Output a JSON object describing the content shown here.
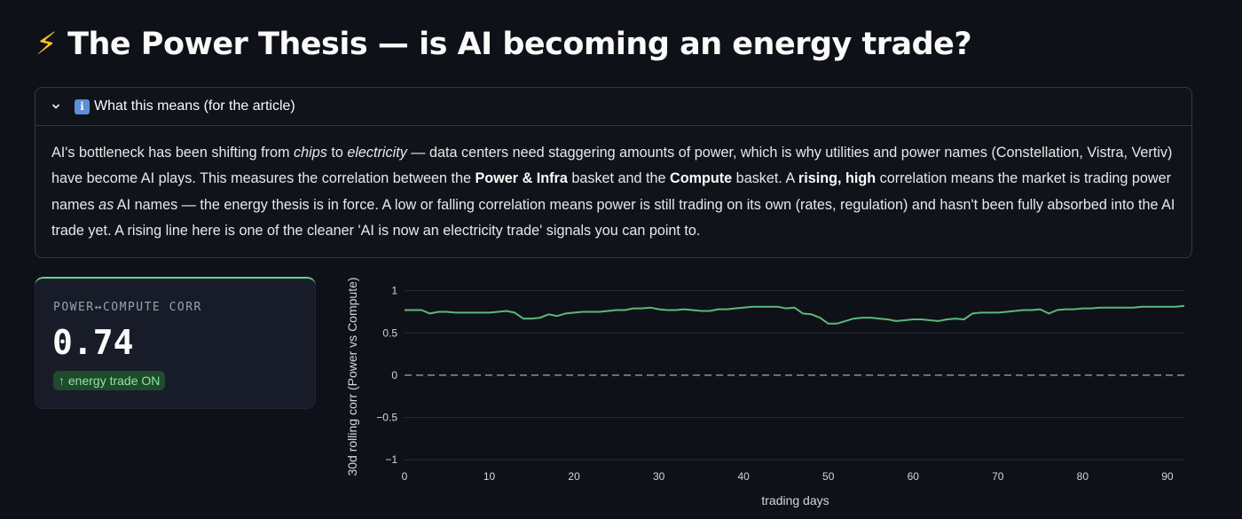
{
  "header": {
    "bolt_icon": "lightning-bolt-icon",
    "title": "The Power Thesis — is AI becoming an energy trade?"
  },
  "expander": {
    "chevron_icon": "chevron-down-icon",
    "info_icon": "info-icon",
    "info_glyph": "i",
    "label": "What this means (for the article)",
    "paragraph": [
      {
        "t": "AI's bottleneck has been shifting from "
      },
      {
        "t": "chips",
        "s": "i"
      },
      {
        "t": " to "
      },
      {
        "t": "electricity",
        "s": "i"
      },
      {
        "t": " — data centers need staggering amounts of power, which is why utilities and power names (Constellation, Vistra, Vertiv) have become AI plays. This measures the correlation between the "
      },
      {
        "t": "Power & Infra",
        "s": "b"
      },
      {
        "t": " basket and the "
      },
      {
        "t": "Compute",
        "s": "b"
      },
      {
        "t": " basket. A "
      },
      {
        "t": "rising, high",
        "s": "b"
      },
      {
        "t": " correlation means the market is trading power names "
      },
      {
        "t": "as",
        "s": "i"
      },
      {
        "t": " AI names — the energy thesis is in force. A low or falling correlation means power is still trading on its own (rates, regulation) and hasn't been fully absorbed into the AI trade yet. A rising line here is one of the cleaner 'AI is now an electricity trade' signals you can point to."
      }
    ]
  },
  "metric": {
    "label": "POWER↔COMPUTE CORR",
    "value": "0.74",
    "delta": "↑ energy trade ON",
    "accent": "#6fcf8a"
  },
  "chart_data": {
    "type": "line",
    "xlabel": "trading days",
    "ylabel": "30d rolling corr (Power vs Compute)",
    "xlim": [
      0,
      92
    ],
    "ylim": [
      -1.05,
      1.08
    ],
    "xticks": [
      0,
      10,
      20,
      30,
      40,
      50,
      60,
      70,
      80,
      90
    ],
    "yticks": [
      1,
      0.5,
      0,
      -0.5,
      -1
    ],
    "ytick_labels": [
      "1",
      "0.5",
      "0",
      "−0.5",
      "−1"
    ],
    "reference_line": 0,
    "grid": true,
    "color": "#5cb87a",
    "x": [
      0,
      1,
      2,
      3,
      4,
      5,
      6,
      7,
      8,
      9,
      10,
      11,
      12,
      13,
      14,
      15,
      16,
      17,
      18,
      19,
      20,
      21,
      22,
      23,
      24,
      25,
      26,
      27,
      28,
      29,
      30,
      31,
      32,
      33,
      34,
      35,
      36,
      37,
      38,
      39,
      40,
      41,
      42,
      43,
      44,
      45,
      46,
      47,
      48,
      49,
      50,
      51,
      52,
      53,
      54,
      55,
      56,
      57,
      58,
      59,
      60,
      61,
      62,
      63,
      64,
      65,
      66,
      67,
      68,
      69,
      70,
      71,
      72,
      73,
      74,
      75,
      76,
      77,
      78,
      79,
      80,
      81,
      82,
      83,
      84,
      85,
      86,
      87,
      88,
      89,
      90,
      91,
      92
    ],
    "y": [
      0.77,
      0.77,
      0.77,
      0.73,
      0.75,
      0.75,
      0.74,
      0.74,
      0.74,
      0.74,
      0.74,
      0.75,
      0.76,
      0.74,
      0.67,
      0.67,
      0.68,
      0.72,
      0.7,
      0.73,
      0.74,
      0.75,
      0.75,
      0.75,
      0.76,
      0.77,
      0.77,
      0.79,
      0.79,
      0.8,
      0.78,
      0.77,
      0.77,
      0.78,
      0.77,
      0.76,
      0.76,
      0.78,
      0.78,
      0.79,
      0.8,
      0.81,
      0.81,
      0.81,
      0.81,
      0.79,
      0.8,
      0.73,
      0.72,
      0.68,
      0.61,
      0.61,
      0.64,
      0.67,
      0.68,
      0.68,
      0.67,
      0.66,
      0.64,
      0.65,
      0.66,
      0.66,
      0.65,
      0.64,
      0.66,
      0.67,
      0.66,
      0.73,
      0.74,
      0.74,
      0.74,
      0.75,
      0.76,
      0.77,
      0.77,
      0.78,
      0.73,
      0.77,
      0.78,
      0.78,
      0.79,
      0.79,
      0.8,
      0.8,
      0.8,
      0.8,
      0.8,
      0.81,
      0.81,
      0.81,
      0.81,
      0.81,
      0.82
    ]
  }
}
